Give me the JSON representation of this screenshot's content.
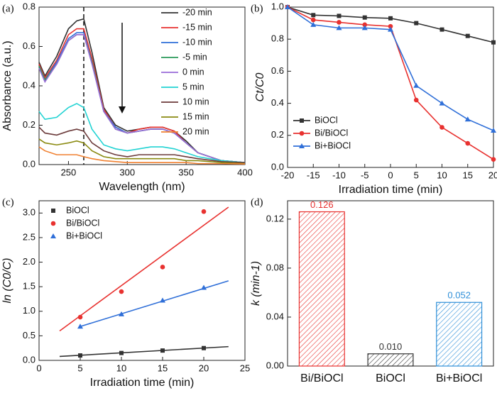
{
  "chart_data": [
    {
      "type": "line",
      "panel_label": "(a)",
      "x_label": "Wavelength (nm)",
      "y_label": "Absorbance (a.u.)",
      "x": [
        225,
        230,
        240,
        250,
        257,
        263,
        270,
        280,
        290,
        300,
        310,
        320,
        330,
        340,
        350,
        360,
        380,
        400
      ],
      "xlim": [
        225,
        400
      ],
      "xticks": [
        250,
        300,
        350,
        400
      ],
      "ylim": [
        0,
        0.8
      ],
      "yticks": [
        {
          "value": 0,
          "label": "0.0"
        },
        0.2,
        0.4,
        0.6,
        0.8
      ],
      "vline_x": 263,
      "legend": "upper right",
      "series": [
        {
          "name": "-20 min",
          "color": "#333333",
          "values": [
            0.52,
            0.45,
            0.55,
            0.69,
            0.73,
            0.74,
            0.57,
            0.29,
            0.2,
            0.17,
            0.18,
            0.19,
            0.19,
            0.17,
            0.12,
            0.06,
            0.02,
            0.01
          ]
        },
        {
          "name": "-15 min",
          "color": "#e8312f",
          "values": [
            0.51,
            0.44,
            0.53,
            0.66,
            0.69,
            0.69,
            0.54,
            0.28,
            0.19,
            0.16,
            0.18,
            0.19,
            0.19,
            0.17,
            0.11,
            0.06,
            0.02,
            0.01
          ]
        },
        {
          "name": "-10 min",
          "color": "#2f6fd8",
          "values": [
            0.5,
            0.43,
            0.52,
            0.64,
            0.67,
            0.67,
            0.52,
            0.27,
            0.19,
            0.16,
            0.17,
            0.18,
            0.18,
            0.16,
            0.11,
            0.06,
            0.02,
            0.01
          ]
        },
        {
          "name": "-5 min",
          "color": "#2a9a5a",
          "values": [
            0.5,
            0.43,
            0.51,
            0.63,
            0.66,
            0.66,
            0.52,
            0.27,
            0.18,
            0.16,
            0.17,
            0.18,
            0.18,
            0.16,
            0.11,
            0.06,
            0.02,
            0.01
          ]
        },
        {
          "name": "0 min",
          "color": "#9a6bd8",
          "values": [
            0.49,
            0.42,
            0.51,
            0.63,
            0.66,
            0.66,
            0.51,
            0.27,
            0.18,
            0.16,
            0.17,
            0.18,
            0.18,
            0.16,
            0.11,
            0.06,
            0.02,
            0.01
          ]
        },
        {
          "name": "5 min",
          "color": "#22d3d3",
          "values": [
            0.27,
            0.23,
            0.24,
            0.29,
            0.31,
            0.29,
            0.18,
            0.1,
            0.08,
            0.07,
            0.08,
            0.09,
            0.09,
            0.08,
            0.06,
            0.04,
            0.02,
            0.01
          ]
        },
        {
          "name": "10 min",
          "color": "#6b3a3a",
          "values": [
            0.19,
            0.16,
            0.15,
            0.17,
            0.18,
            0.17,
            0.11,
            0.07,
            0.05,
            0.04,
            0.05,
            0.05,
            0.05,
            0.05,
            0.04,
            0.03,
            0.015,
            0.01
          ]
        },
        {
          "name": "15 min",
          "color": "#8a8a10",
          "values": [
            0.13,
            0.11,
            0.1,
            0.11,
            0.12,
            0.11,
            0.07,
            0.04,
            0.03,
            0.03,
            0.03,
            0.03,
            0.03,
            0.03,
            0.02,
            0.02,
            0.01,
            0.005
          ]
        },
        {
          "name": "20 min",
          "color": "#f08030",
          "values": [
            0.09,
            0.07,
            0.05,
            0.05,
            0.05,
            0.04,
            0.03,
            0.02,
            0.015,
            0.01,
            0.01,
            0.01,
            0.01,
            0.01,
            0.01,
            0.005,
            0.005,
            0.003
          ]
        }
      ]
    },
    {
      "type": "line",
      "panel_label": "(b)",
      "x_label": "Irradiation time (min)",
      "y_label": "Ct/C0",
      "x": [
        -20,
        -15,
        -10,
        -5,
        0,
        5,
        10,
        15,
        20
      ],
      "xlim": [
        -20,
        20
      ],
      "xticks": [
        -20,
        -15,
        -10,
        -5,
        0,
        5,
        10,
        15,
        20
      ],
      "ylim": [
        0,
        1
      ],
      "yticks": [
        {
          "value": 0,
          "label": "0.0"
        },
        0.2,
        0.4,
        0.6,
        0.8,
        {
          "value": 1,
          "label": "1.0"
        }
      ],
      "legend": "lower left",
      "series": [
        {
          "name": "BiOCl",
          "color": "#333333",
          "marker": "square",
          "values": [
            1,
            0.95,
            0.945,
            0.935,
            0.93,
            0.9,
            0.86,
            0.82,
            0.78
          ]
        },
        {
          "name": "Bi/BiOCl",
          "color": "#e8312f",
          "marker": "circle",
          "values": [
            1,
            0.92,
            0.905,
            0.89,
            0.88,
            0.42,
            0.25,
            0.15,
            0.05
          ]
        },
        {
          "name": "Bi+BiOCl",
          "color": "#2f6fd8",
          "marker": "triangle",
          "values": [
            1,
            0.89,
            0.87,
            0.87,
            0.86,
            0.51,
            0.4,
            0.3,
            0.23
          ]
        }
      ]
    },
    {
      "type": "scatter",
      "panel_label": "(c)",
      "x_label": "Irradiation time (min)",
      "y_label": "ln (C0/C)",
      "x": [
        5,
        10,
        15,
        20
      ],
      "xlim": [
        0,
        25
      ],
      "xticks": [
        0,
        5,
        10,
        15,
        20,
        25
      ],
      "ylim": [
        0,
        3.25
      ],
      "yticks": [
        {
          "value": 0,
          "label": "0.0"
        },
        0.5,
        {
          "value": 1,
          "label": "1.0"
        },
        1.5,
        {
          "value": 2,
          "label": "2.0"
        },
        2.5,
        {
          "value": 3,
          "label": "3.0"
        }
      ],
      "legend": "upper left",
      "series": [
        {
          "name": "BiOCl",
          "color": "#333333",
          "marker": "square",
          "values": [
            0.1,
            0.15,
            0.2,
            0.25
          ],
          "fit_x": [
            2.5,
            23
          ],
          "fit_y": [
            0.08,
            0.28
          ]
        },
        {
          "name": "Bi/BiOCl",
          "color": "#e8312f",
          "marker": "circle",
          "values": [
            0.88,
            1.4,
            1.9,
            3.03
          ],
          "fit_x": [
            2.5,
            23
          ],
          "fit_y": [
            0.6,
            3.12
          ]
        },
        {
          "name": "Bi+BiOCl",
          "color": "#2f6fd8",
          "marker": "triangle",
          "values": [
            0.69,
            0.94,
            1.22,
            1.48
          ],
          "fit_x": [
            5,
            23
          ],
          "fit_y": [
            0.69,
            1.62
          ]
        }
      ]
    },
    {
      "type": "bar",
      "panel_label": "(d)",
      "y_label": "k (min-1)",
      "categories": [
        "Bi/BiOCl",
        "BiOCl",
        "Bi+BiOCl"
      ],
      "values": [
        0.126,
        0.01,
        0.052
      ],
      "value_labels": [
        "0.126",
        "0.010",
        "0.052"
      ],
      "colors": [
        "#e8312f",
        "#333333",
        "#2f8fd8"
      ],
      "ylim": [
        0,
        0.135
      ],
      "yticks": [
        {
          "value": 0,
          "label": "0.00"
        },
        {
          "value": 0.04,
          "label": "0.04"
        },
        {
          "value": 0.08,
          "label": "0.08"
        },
        {
          "value": 0.12,
          "label": "0.12"
        }
      ]
    }
  ]
}
